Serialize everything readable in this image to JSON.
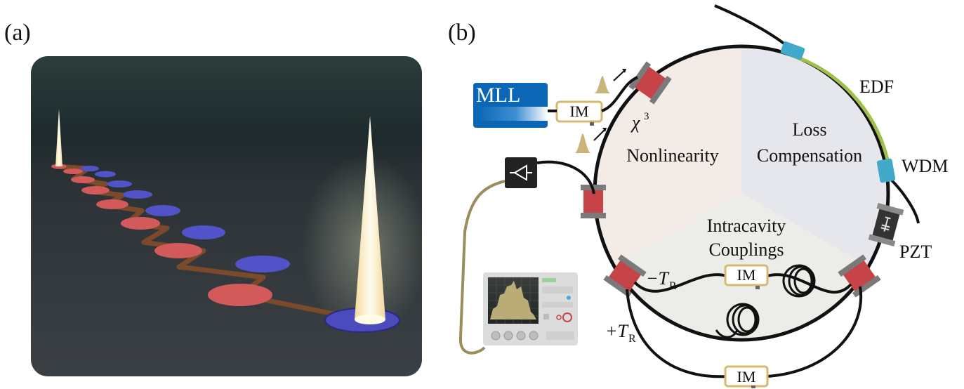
{
  "panels": {
    "a": {
      "label": "(a)"
    },
    "b": {
      "label": "(b)"
    }
  },
  "diagram": {
    "mll_label": "MLL",
    "im_label": "IM",
    "chi_label": "χ",
    "chi_superscript": "3",
    "nonlinearity_label": "Nonlinearity",
    "loss_label": "Loss",
    "compensation_label": "Compensation",
    "intracavity_label": "Intracavity",
    "couplings_label": "Couplings",
    "edf_label": "EDF",
    "wdm_label": "WDM",
    "pzt_label": "PZT",
    "minus_tr": "−T",
    "plus_tr": "+T",
    "tr_sub": "R"
  },
  "colors": {
    "sector_nonlinearity": "#f3ebe5",
    "sector_loss": "#e6e7ec",
    "sector_couplings": "#ecece8",
    "edf_fiber": "#9fc14c",
    "wdm": "#41a9c9",
    "coupler_red": "#c64448",
    "coupler_grey": "#7a7a7a",
    "im_border": "#d7b86f",
    "mll_blue": "#0b67b5",
    "cable": "#9a8d5b",
    "pump_red": "#e8a8a4",
    "pump_blue": "#5a5ad0"
  }
}
